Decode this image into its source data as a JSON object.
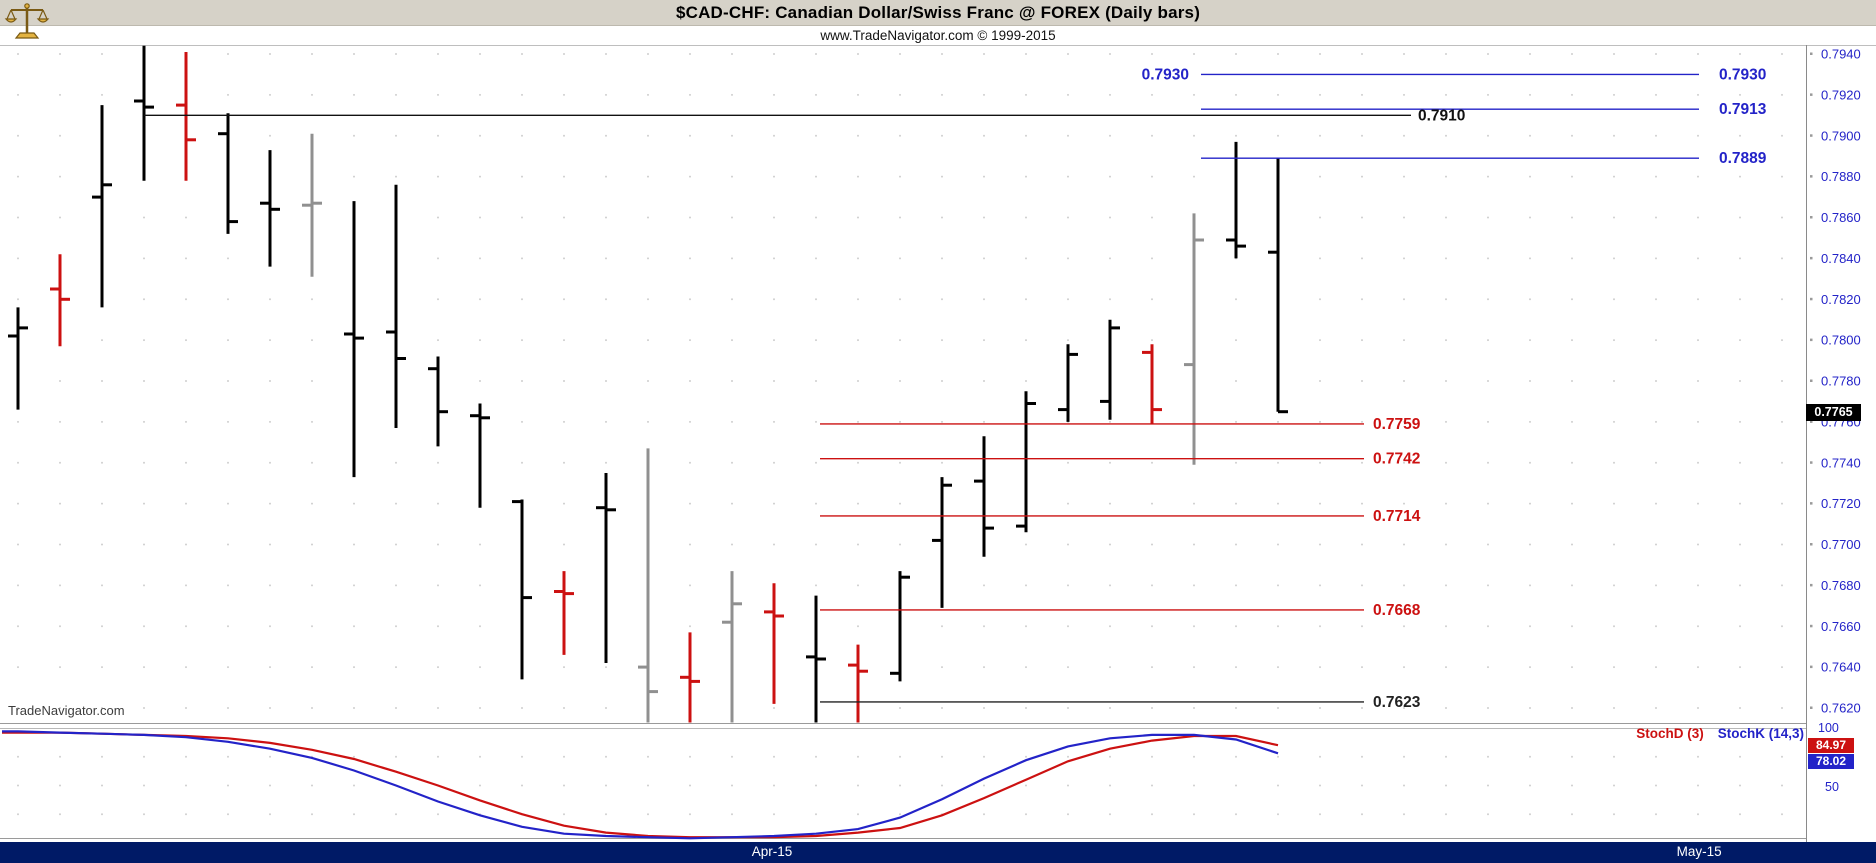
{
  "header": {
    "title": "$CAD-CHF:  Canadian Dollar/Swiss Franc @ FOREX  (Daily bars)",
    "subtitle": "www.TradeNavigator.com © 1999-2015",
    "logo": "scales-icon"
  },
  "watermark": "TradeNavigator.com",
  "price_axis": {
    "labels": [
      "0.7940",
      "0.7920",
      "0.7900",
      "0.7880",
      "0.7860",
      "0.7840",
      "0.7820",
      "0.7800",
      "0.7780",
      "0.7760",
      "0.7740",
      "0.7720",
      "0.7700",
      "0.7680",
      "0.7660",
      "0.7640",
      "0.7620"
    ],
    "text_color": "#2323c8",
    "last_price_badge": {
      "value": "0.7765",
      "bg": "#000000",
      "text_color": "#ffffff"
    }
  },
  "date_axis": {
    "bg": "#001a66",
    "labels": [
      {
        "text": "Apr-15",
        "pos": 0.4115
      },
      {
        "text": "May-15",
        "pos": 0.9057
      }
    ]
  },
  "chart_data": {
    "type": "ohlc-bar",
    "title": "$CAD-CHF: Canadian Dollar/Swiss Franc @ FOREX (Daily bars)",
    "symbol": "$CAD-CHF",
    "timeframe": "Daily",
    "price_range": {
      "min": 0.762,
      "max": 0.794,
      "tick": 0.002
    },
    "bar_colors": {
      "k": "#000000",
      "r": "#cc1111",
      "g": "#909090"
    },
    "bars": [
      [
        0.7802,
        0.7816,
        0.7766,
        0.7806,
        "k"
      ],
      [
        0.7825,
        0.7842,
        0.7797,
        0.782,
        "r"
      ],
      [
        0.787,
        0.7915,
        0.7816,
        0.7876,
        "k"
      ],
      [
        0.7917,
        0.7944,
        0.7878,
        0.7914,
        "k"
      ],
      [
        0.7915,
        0.7941,
        0.7878,
        0.7898,
        "r"
      ],
      [
        0.7901,
        0.7911,
        0.7852,
        0.7858,
        "k"
      ],
      [
        0.7867,
        0.7893,
        0.7836,
        0.7864,
        "k"
      ],
      [
        0.7866,
        0.7901,
        0.7831,
        0.7867,
        "g"
      ],
      [
        0.7803,
        0.7868,
        0.7733,
        0.7801,
        "k"
      ],
      [
        0.7804,
        0.7876,
        0.7757,
        0.7791,
        "k"
      ],
      [
        0.7786,
        0.7792,
        0.7748,
        0.7765,
        "k"
      ],
      [
        0.7763,
        0.7769,
        0.7718,
        0.7762,
        "k"
      ],
      [
        0.7721,
        0.7722,
        0.7634,
        0.7674,
        "k"
      ],
      [
        0.7677,
        0.7687,
        0.7646,
        0.7676,
        "r"
      ],
      [
        0.7718,
        0.7735,
        0.7642,
        0.7717,
        "k"
      ],
      [
        0.764,
        0.7747,
        0.7612,
        0.7628,
        "g"
      ],
      [
        0.7635,
        0.7657,
        0.7612,
        0.7633,
        "r"
      ],
      [
        0.7662,
        0.7687,
        0.7612,
        0.7671,
        "g"
      ],
      [
        0.7667,
        0.7681,
        0.7622,
        0.7665,
        "r"
      ],
      [
        0.7645,
        0.7675,
        0.761,
        0.7644,
        "k"
      ],
      [
        0.7641,
        0.7651,
        0.761,
        0.7638,
        "r"
      ],
      [
        0.7637,
        0.7687,
        0.7633,
        0.7684,
        "k"
      ],
      [
        0.7702,
        0.7733,
        0.7669,
        0.7729,
        "k"
      ],
      [
        0.7731,
        0.7753,
        0.7694,
        0.7708,
        "k"
      ],
      [
        0.7709,
        0.7775,
        0.7706,
        0.7769,
        "k"
      ],
      [
        0.7766,
        0.7798,
        0.776,
        0.7793,
        "k"
      ],
      [
        0.777,
        0.781,
        0.7761,
        0.7806,
        "k"
      ],
      [
        0.7794,
        0.7798,
        0.7759,
        0.7766,
        "r"
      ],
      [
        0.7788,
        0.7862,
        0.7739,
        0.7849,
        "g"
      ],
      [
        0.7849,
        0.7897,
        0.784,
        0.7846,
        "k"
      ],
      [
        0.7843,
        0.7889,
        0.7765,
        0.7765,
        "k"
      ]
    ],
    "levels": [
      {
        "price": 0.793,
        "label": "0.7930",
        "color": "#2323c8",
        "x1": 0.64,
        "x2": 0.9055,
        "left_label_x": 0.634,
        "right_label_x": 0.9165
      },
      {
        "price": 0.7913,
        "label": "0.7913",
        "color": "#2323c8",
        "x1": 0.64,
        "x2": 0.9055,
        "right_label_x": 0.9165
      },
      {
        "price": 0.791,
        "label": "0.7910",
        "color": "#111111",
        "x1": 0.0766,
        "x2": 0.752,
        "right_label_x": 0.756
      },
      {
        "price": 0.7889,
        "label": "0.7889",
        "color": "#2323c8",
        "x1": 0.64,
        "x2": 0.9055,
        "right_label_x": 0.9165
      },
      {
        "price": 0.7759,
        "label": "0.7759",
        "color": "#cc1111",
        "x1": 0.4369,
        "x2": 0.727,
        "right_label_x": 0.732
      },
      {
        "price": 0.7742,
        "label": "0.7742",
        "color": "#cc1111",
        "x1": 0.4369,
        "x2": 0.727,
        "right_label_x": 0.732
      },
      {
        "price": 0.7714,
        "label": "0.7714",
        "color": "#cc1111",
        "x1": 0.4369,
        "x2": 0.727,
        "right_label_x": 0.732
      },
      {
        "price": 0.7668,
        "label": "0.7668",
        "color": "#cc1111",
        "x1": 0.4369,
        "x2": 0.727,
        "right_label_x": 0.732
      },
      {
        "price": 0.7623,
        "label": "0.7623",
        "color": "#222222",
        "x1": 0.4369,
        "x2": 0.727,
        "right_label_x": 0.732
      }
    ],
    "stochastic": {
      "d_label": "StochD (3)",
      "k_label": "StochK (14,3)",
      "d_color": "#cc1111",
      "k_color": "#2323c8",
      "d_last": "84.97",
      "k_last": "78.02",
      "scale": [
        "100",
        "50"
      ],
      "d_values": [
        96,
        96,
        95,
        94,
        93,
        91,
        87,
        81,
        73,
        62,
        50,
        37,
        25,
        15,
        9,
        6,
        5,
        5,
        5,
        6,
        9,
        13,
        24,
        39,
        55,
        71,
        82,
        89,
        93,
        93,
        85
      ],
      "k_values": [
        97,
        96,
        95,
        94,
        92,
        88,
        82,
        74,
        63,
        50,
        36,
        24,
        14,
        8,
        6,
        5,
        4,
        5,
        6,
        8,
        12,
        22,
        38,
        56,
        72,
        84,
        91,
        94,
        94,
        90,
        78
      ]
    }
  }
}
